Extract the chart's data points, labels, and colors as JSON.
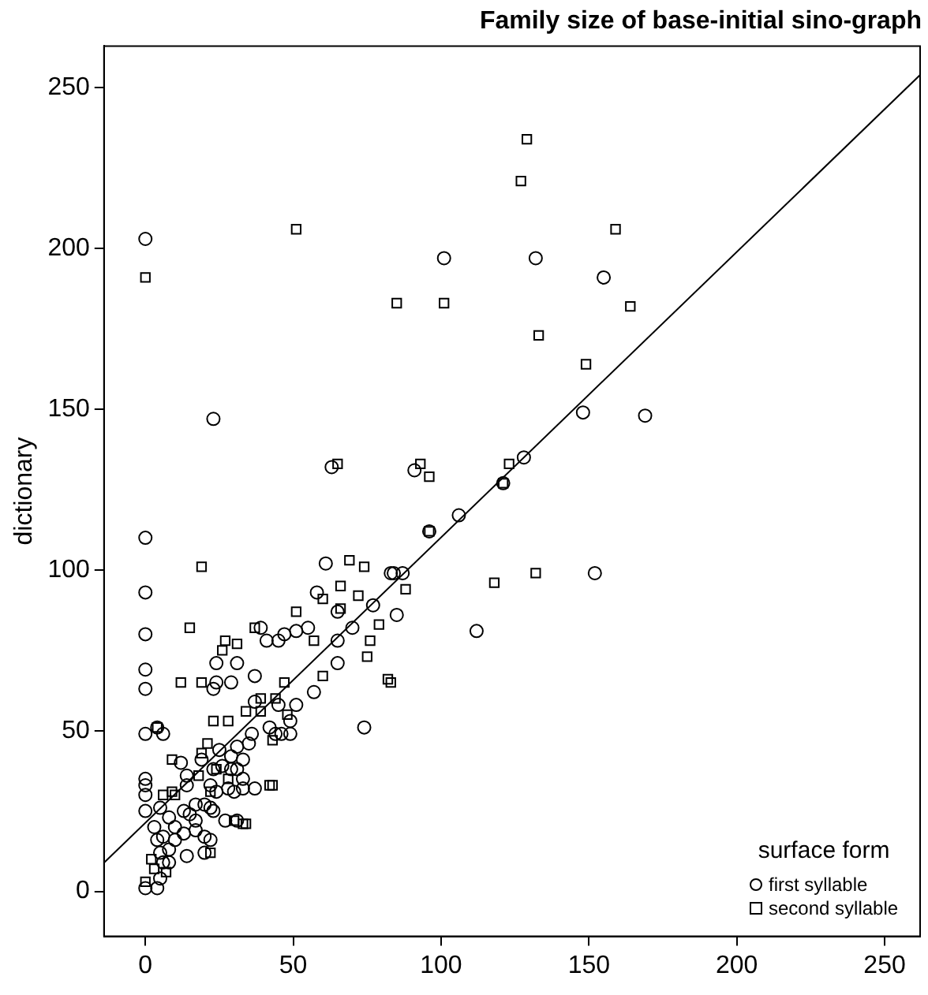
{
  "chart_data": {
    "type": "scatter",
    "title": "Family size of base-initial sino-graph",
    "ylabel": "dictionary",
    "legend_title": "surface form",
    "legend": "bottom right",
    "grid": false,
    "xlim": [
      -14,
      262
    ],
    "xticks": [
      0,
      50,
      100,
      150,
      200,
      250
    ],
    "ylim": [
      -14,
      263
    ],
    "yticks": [
      0,
      50,
      100,
      150,
      200,
      250
    ],
    "series": [
      {
        "name": "first syllable",
        "color": "#000000",
        "marker": "circle",
        "x": [
          0,
          101,
          23,
          63,
          132,
          155,
          148,
          169,
          128,
          91,
          121,
          106,
          96,
          87,
          84,
          152,
          85,
          112,
          0,
          0,
          61,
          83,
          58,
          65,
          77,
          70,
          39,
          41,
          45,
          47,
          51,
          55,
          65,
          0,
          24,
          31,
          65,
          0,
          0,
          24,
          29,
          23,
          37,
          57,
          51,
          74,
          0,
          4,
          6,
          49,
          44,
          49,
          35,
          31,
          36,
          25,
          29,
          33,
          12,
          14,
          0,
          0,
          0,
          0,
          37,
          33,
          30,
          24,
          22,
          14,
          17,
          13,
          15,
          5,
          8,
          23,
          27,
          31,
          17,
          20,
          22,
          14,
          10,
          8,
          5,
          4,
          0,
          6,
          5,
          8,
          4,
          6,
          3,
          10,
          13,
          20,
          22,
          17,
          28,
          19,
          26,
          23,
          29,
          31,
          33,
          20,
          45,
          37,
          42,
          46
        ],
        "values": [
          203,
          197,
          147,
          132,
          197,
          191,
          149,
          148,
          135,
          131,
          127,
          117,
          112,
          99,
          99,
          99,
          86,
          81,
          110,
          93,
          102,
          99,
          93,
          87,
          89,
          82,
          82,
          78,
          78,
          80,
          81,
          82,
          78,
          80,
          71,
          71,
          71,
          69,
          63,
          65,
          65,
          63,
          67,
          62,
          58,
          51,
          49,
          51,
          49,
          53,
          49,
          49,
          46,
          45,
          49,
          44,
          42,
          41,
          40,
          36,
          35,
          33,
          30,
          25,
          32,
          32,
          31,
          31,
          33,
          33,
          27,
          25,
          24,
          26,
          23,
          25,
          22,
          22,
          19,
          17,
          16,
          11,
          16,
          13,
          4,
          1,
          1,
          9,
          12,
          9,
          16,
          17,
          20,
          20,
          18,
          27,
          26,
          22,
          32,
          41,
          39,
          38,
          38,
          38,
          35,
          12,
          58,
          59,
          51,
          49
        ]
      },
      {
        "name": "second syllable",
        "color": "#000000",
        "marker": "square",
        "x": [
          0,
          51,
          85,
          101,
          65,
          93,
          129,
          127,
          159,
          164,
          133,
          149,
          123,
          96,
          121,
          96,
          88,
          118,
          132,
          83,
          19,
          69,
          74,
          66,
          60,
          72,
          66,
          79,
          51,
          15,
          37,
          57,
          76,
          27,
          31,
          26,
          75,
          60,
          82,
          12,
          19,
          47,
          39,
          44,
          4,
          23,
          28,
          34,
          39,
          48,
          43,
          19,
          21,
          9,
          18,
          24,
          28,
          42,
          43,
          10,
          6,
          9,
          22,
          30,
          33,
          34,
          22,
          2,
          3,
          7,
          0
        ],
        "values": [
          191,
          206,
          183,
          183,
          133,
          133,
          234,
          221,
          206,
          182,
          173,
          164,
          133,
          129,
          127,
          112,
          94,
          96,
          99,
          65,
          101,
          103,
          101,
          95,
          91,
          92,
          88,
          83,
          87,
          82,
          82,
          78,
          78,
          78,
          77,
          75,
          73,
          67,
          66,
          65,
          65,
          65,
          60,
          60,
          51,
          53,
          53,
          56,
          56,
          55,
          47,
          43,
          46,
          41,
          36,
          38,
          35,
          33,
          33,
          30,
          30,
          31,
          31,
          22,
          21,
          21,
          12,
          10,
          7,
          6,
          3
        ]
      },
      {
        "type": "line",
        "color": "#000000",
        "marker": "none",
        "line_style": "solid",
        "x": [
          -14,
          262
        ],
        "values": [
          8.9,
          254
        ]
      }
    ]
  }
}
